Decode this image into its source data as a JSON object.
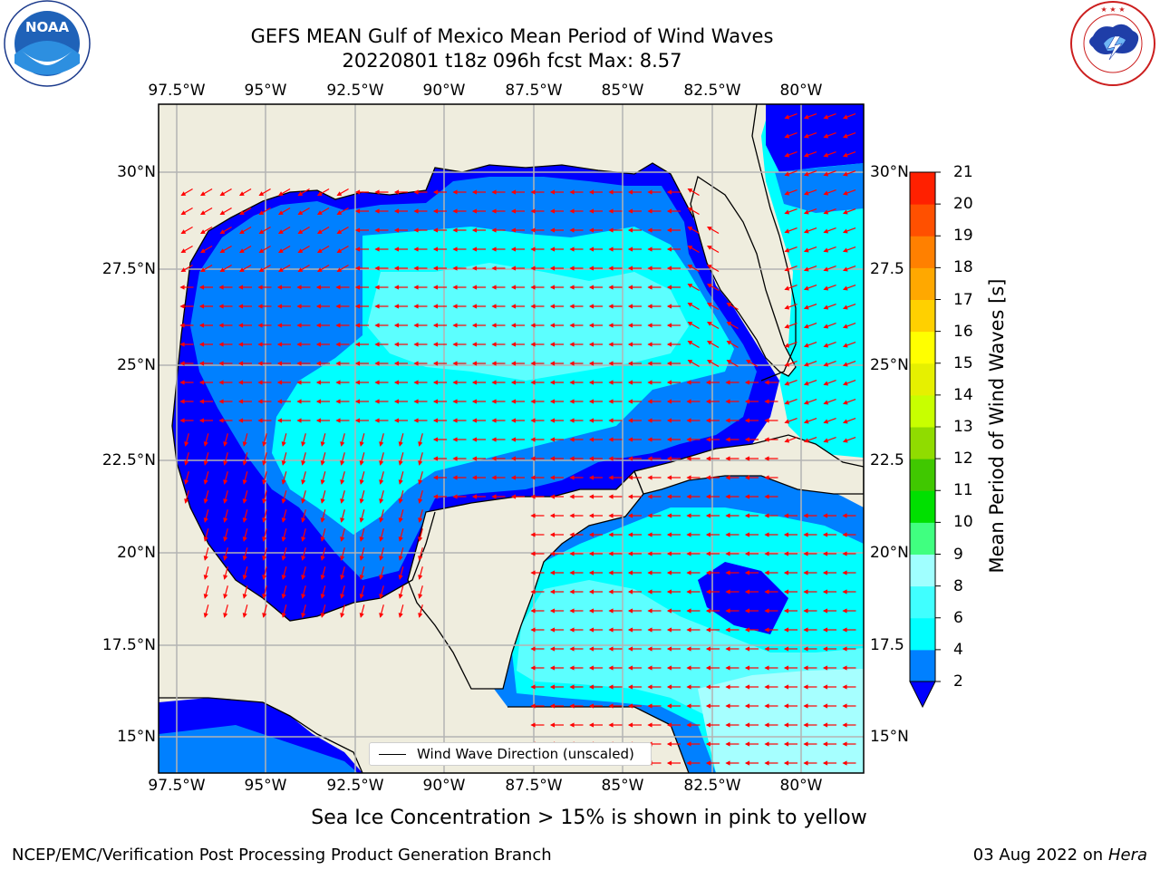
{
  "title": {
    "line1": "GEFS MEAN Gulf of Mexico Mean Period of Wind Waves",
    "line2": "20220801 t18z 096h fcst   Max: 8.57"
  },
  "axes": {
    "lon_labels": [
      "97.5°W",
      "95°W",
      "92.5°W",
      "90°W",
      "87.5°W",
      "85°W",
      "82.5°W",
      "80°W"
    ],
    "lat_labels_left": [
      "30°N",
      "27.5°N",
      "25°N",
      "22.5°N",
      "20°N",
      "17.5°N",
      "15°N"
    ],
    "lat_labels_right": [
      "30°N",
      "27.5",
      "25°N",
      "22.5",
      "20°N",
      "17.5",
      "15°N"
    ]
  },
  "colorbar": {
    "label": "Mean Period of Wind Waves [s]",
    "ticks": [
      "2",
      "4",
      "6",
      "8",
      "9",
      "10",
      "11",
      "12",
      "13",
      "14",
      "15",
      "16",
      "17",
      "18",
      "19",
      "20",
      "21"
    ],
    "colors": [
      "#0000ff",
      "#0080ff",
      "#00ffff",
      "#40ffff",
      "#a0ffff",
      "#40ff80",
      "#00e000",
      "#40c800",
      "#90dc00",
      "#c8ff00",
      "#e6f000",
      "#ffff00",
      "#ffd000",
      "#ffa800",
      "#ff8000",
      "#ff5000",
      "#ff2000",
      "#ff0000"
    ]
  },
  "legend": {
    "label": "Wind Wave Direction (unscaled)"
  },
  "footer": {
    "sea_ice_note": "Sea Ice Concentration > 15% is shown in pink to yellow",
    "credit": "NCEP/EMC/Verification Post Processing Product Generation Branch",
    "date": "03 Aug 2022 on",
    "machine": "Hera"
  },
  "logos": {
    "noaa": {
      "text": "NOAA",
      "ring": "NATIONAL OCEANIC AND ATMOSPHERIC ADMINISTRATION · U.S. DEPARTMENT OF COMMERCE"
    },
    "nws": {
      "ring": "NATIONAL WEATHER SERVICE"
    }
  },
  "colors": {
    "land": "#efedde",
    "grid": "#b3b3b3",
    "arrow": "#ff0000",
    "level2": "#0000ff",
    "level4": "#0080ff",
    "level6": "#00ffff",
    "level8": "#5cffff",
    "level9": "#a6ffff"
  },
  "map_data": {
    "lon_range": [
      -98,
      -78.2
    ],
    "lat_range": [
      14,
      31.8
    ],
    "max_period": 8.57
  }
}
